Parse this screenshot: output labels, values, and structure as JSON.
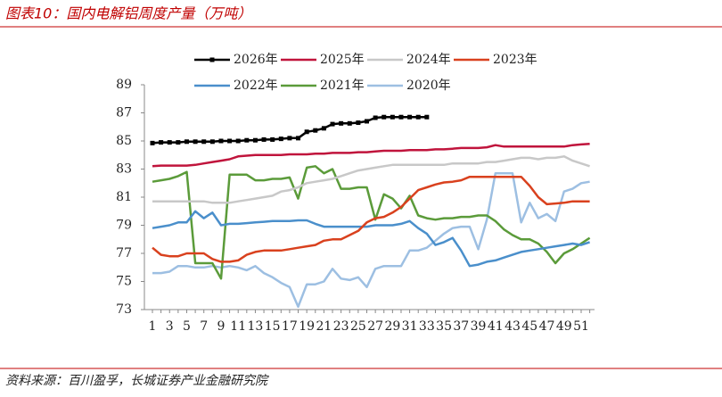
{
  "chart_data": {
    "type": "line",
    "title": "图表10：国内电解铝周度产量（万吨）",
    "source": "资料来源：百川盈孚，长城证券产业金融研究院",
    "categories": [
      1,
      null,
      3,
      null,
      5,
      null,
      7,
      null,
      9,
      null,
      11,
      null,
      13,
      null,
      15,
      null,
      17,
      null,
      19,
      null,
      21,
      null,
      23,
      null,
      25,
      null,
      27,
      null,
      29,
      null,
      31,
      null,
      33,
      null,
      35,
      null,
      37,
      null,
      39,
      null,
      41,
      null,
      43,
      null,
      45,
      null,
      47,
      null,
      49,
      null,
      51,
      null
    ],
    "ylim": [
      73,
      89
    ],
    "yticks": [
      73,
      75,
      77,
      79,
      81,
      83,
      85,
      87,
      89
    ],
    "grid": false,
    "series": [
      {
        "name": "2026年",
        "color": "#000000",
        "marker": "square",
        "values": [
          84.85,
          84.9,
          84.9,
          84.9,
          84.95,
          84.95,
          84.95,
          84.95,
          85.0,
          85.0,
          85.0,
          85.05,
          85.05,
          85.1,
          85.1,
          85.15,
          85.2,
          85.2,
          85.65,
          85.75,
          85.9,
          86.2,
          86.25,
          86.25,
          86.3,
          86.4,
          86.65,
          86.7,
          86.7,
          86.7,
          86.7,
          86.7,
          86.7,
          null,
          null,
          null,
          null,
          null,
          null,
          null,
          null,
          null,
          null,
          null,
          null,
          null,
          null,
          null,
          null,
          null,
          null,
          null
        ]
      },
      {
        "name": "2025年",
        "color": "#C0143C",
        "values": [
          83.2,
          83.25,
          83.25,
          83.25,
          83.25,
          83.3,
          83.4,
          83.5,
          83.6,
          83.7,
          83.9,
          83.95,
          84.0,
          84.0,
          84.0,
          84.0,
          84.05,
          84.05,
          84.05,
          84.1,
          84.1,
          84.15,
          84.15,
          84.15,
          84.2,
          84.2,
          84.25,
          84.3,
          84.3,
          84.3,
          84.35,
          84.35,
          84.35,
          84.4,
          84.4,
          84.45,
          84.5,
          84.5,
          84.5,
          84.55,
          84.7,
          84.6,
          84.6,
          84.6,
          84.6,
          84.6,
          84.6,
          84.6,
          84.6,
          84.7,
          84.75,
          84.8
        ]
      },
      {
        "name": "2024年",
        "color": "#C8C8C8",
        "values": [
          80.7,
          80.7,
          80.7,
          80.7,
          80.7,
          80.7,
          80.7,
          80.6,
          80.6,
          80.6,
          80.7,
          80.8,
          80.9,
          81.0,
          81.1,
          81.4,
          81.5,
          81.7,
          82.0,
          82.1,
          82.2,
          82.3,
          82.5,
          82.7,
          82.9,
          83.0,
          83.1,
          83.2,
          83.3,
          83.3,
          83.3,
          83.3,
          83.3,
          83.3,
          83.3,
          83.4,
          83.4,
          83.4,
          83.4,
          83.5,
          83.5,
          83.6,
          83.7,
          83.8,
          83.8,
          83.7,
          83.8,
          83.8,
          83.9,
          83.6,
          83.4,
          83.2
        ]
      },
      {
        "name": "2023年",
        "color": "#D9411E",
        "values": [
          77.4,
          76.9,
          76.8,
          76.8,
          77.0,
          77.0,
          77.0,
          76.6,
          76.4,
          76.4,
          76.5,
          76.9,
          77.1,
          77.2,
          77.2,
          77.2,
          77.3,
          77.4,
          77.5,
          77.6,
          77.9,
          78.0,
          78.0,
          78.3,
          78.6,
          79.2,
          79.5,
          79.6,
          79.9,
          80.3,
          80.9,
          81.5,
          81.7,
          81.9,
          82.05,
          82.1,
          82.2,
          82.45,
          82.45,
          82.45,
          82.45,
          82.45,
          82.45,
          82.45,
          81.8,
          81.0,
          80.5,
          80.55,
          80.6,
          80.7,
          80.7,
          80.7
        ]
      },
      {
        "name": "2022年",
        "color": "#4A8FCB",
        "values": [
          78.8,
          78.9,
          79.0,
          79.2,
          79.2,
          80.0,
          79.5,
          79.9,
          79.0,
          79.1,
          79.1,
          79.15,
          79.2,
          79.25,
          79.3,
          79.3,
          79.3,
          79.35,
          79.35,
          79.1,
          78.9,
          78.9,
          78.9,
          78.9,
          78.9,
          78.9,
          79.0,
          79.0,
          79.0,
          79.1,
          79.3,
          78.8,
          78.4,
          77.6,
          77.8,
          78.1,
          77.2,
          76.1,
          76.2,
          76.4,
          76.5,
          76.7,
          76.9,
          77.1,
          77.2,
          77.3,
          77.4,
          77.5,
          77.6,
          77.7,
          77.6,
          77.8
        ]
      },
      {
        "name": "2021年",
        "color": "#5B9B3A",
        "values": [
          82.1,
          82.2,
          82.3,
          82.5,
          82.8,
          76.3,
          76.3,
          76.3,
          75.2,
          82.6,
          82.6,
          82.6,
          82.2,
          82.2,
          82.3,
          82.3,
          82.4,
          80.9,
          83.1,
          83.2,
          82.7,
          83.0,
          81.6,
          81.6,
          81.7,
          81.7,
          79.4,
          81.2,
          80.9,
          80.2,
          81.1,
          79.7,
          79.5,
          79.4,
          79.5,
          79.5,
          79.6,
          79.6,
          79.7,
          79.7,
          79.3,
          78.7,
          78.3,
          78.0,
          78.0,
          77.7,
          77.1,
          76.3,
          77.0,
          77.3,
          77.7,
          78.1
        ]
      },
      {
        "name": "2020年",
        "color": "#9DBFE2",
        "values": [
          75.6,
          75.6,
          75.7,
          76.1,
          76.1,
          76.0,
          76.0,
          76.1,
          76.0,
          76.1,
          76.0,
          75.8,
          76.1,
          75.6,
          75.3,
          74.9,
          74.6,
          73.2,
          74.8,
          74.8,
          75.0,
          75.9,
          75.2,
          75.1,
          75.3,
          74.6,
          75.9,
          76.1,
          76.1,
          76.1,
          77.2,
          77.2,
          77.4,
          77.9,
          78.4,
          78.8,
          78.9,
          78.9,
          77.3,
          79.4,
          82.7,
          82.7,
          82.7,
          79.2,
          80.6,
          79.5,
          79.8,
          79.3,
          81.4,
          81.6,
          82.0,
          82.1
        ]
      }
    ]
  }
}
